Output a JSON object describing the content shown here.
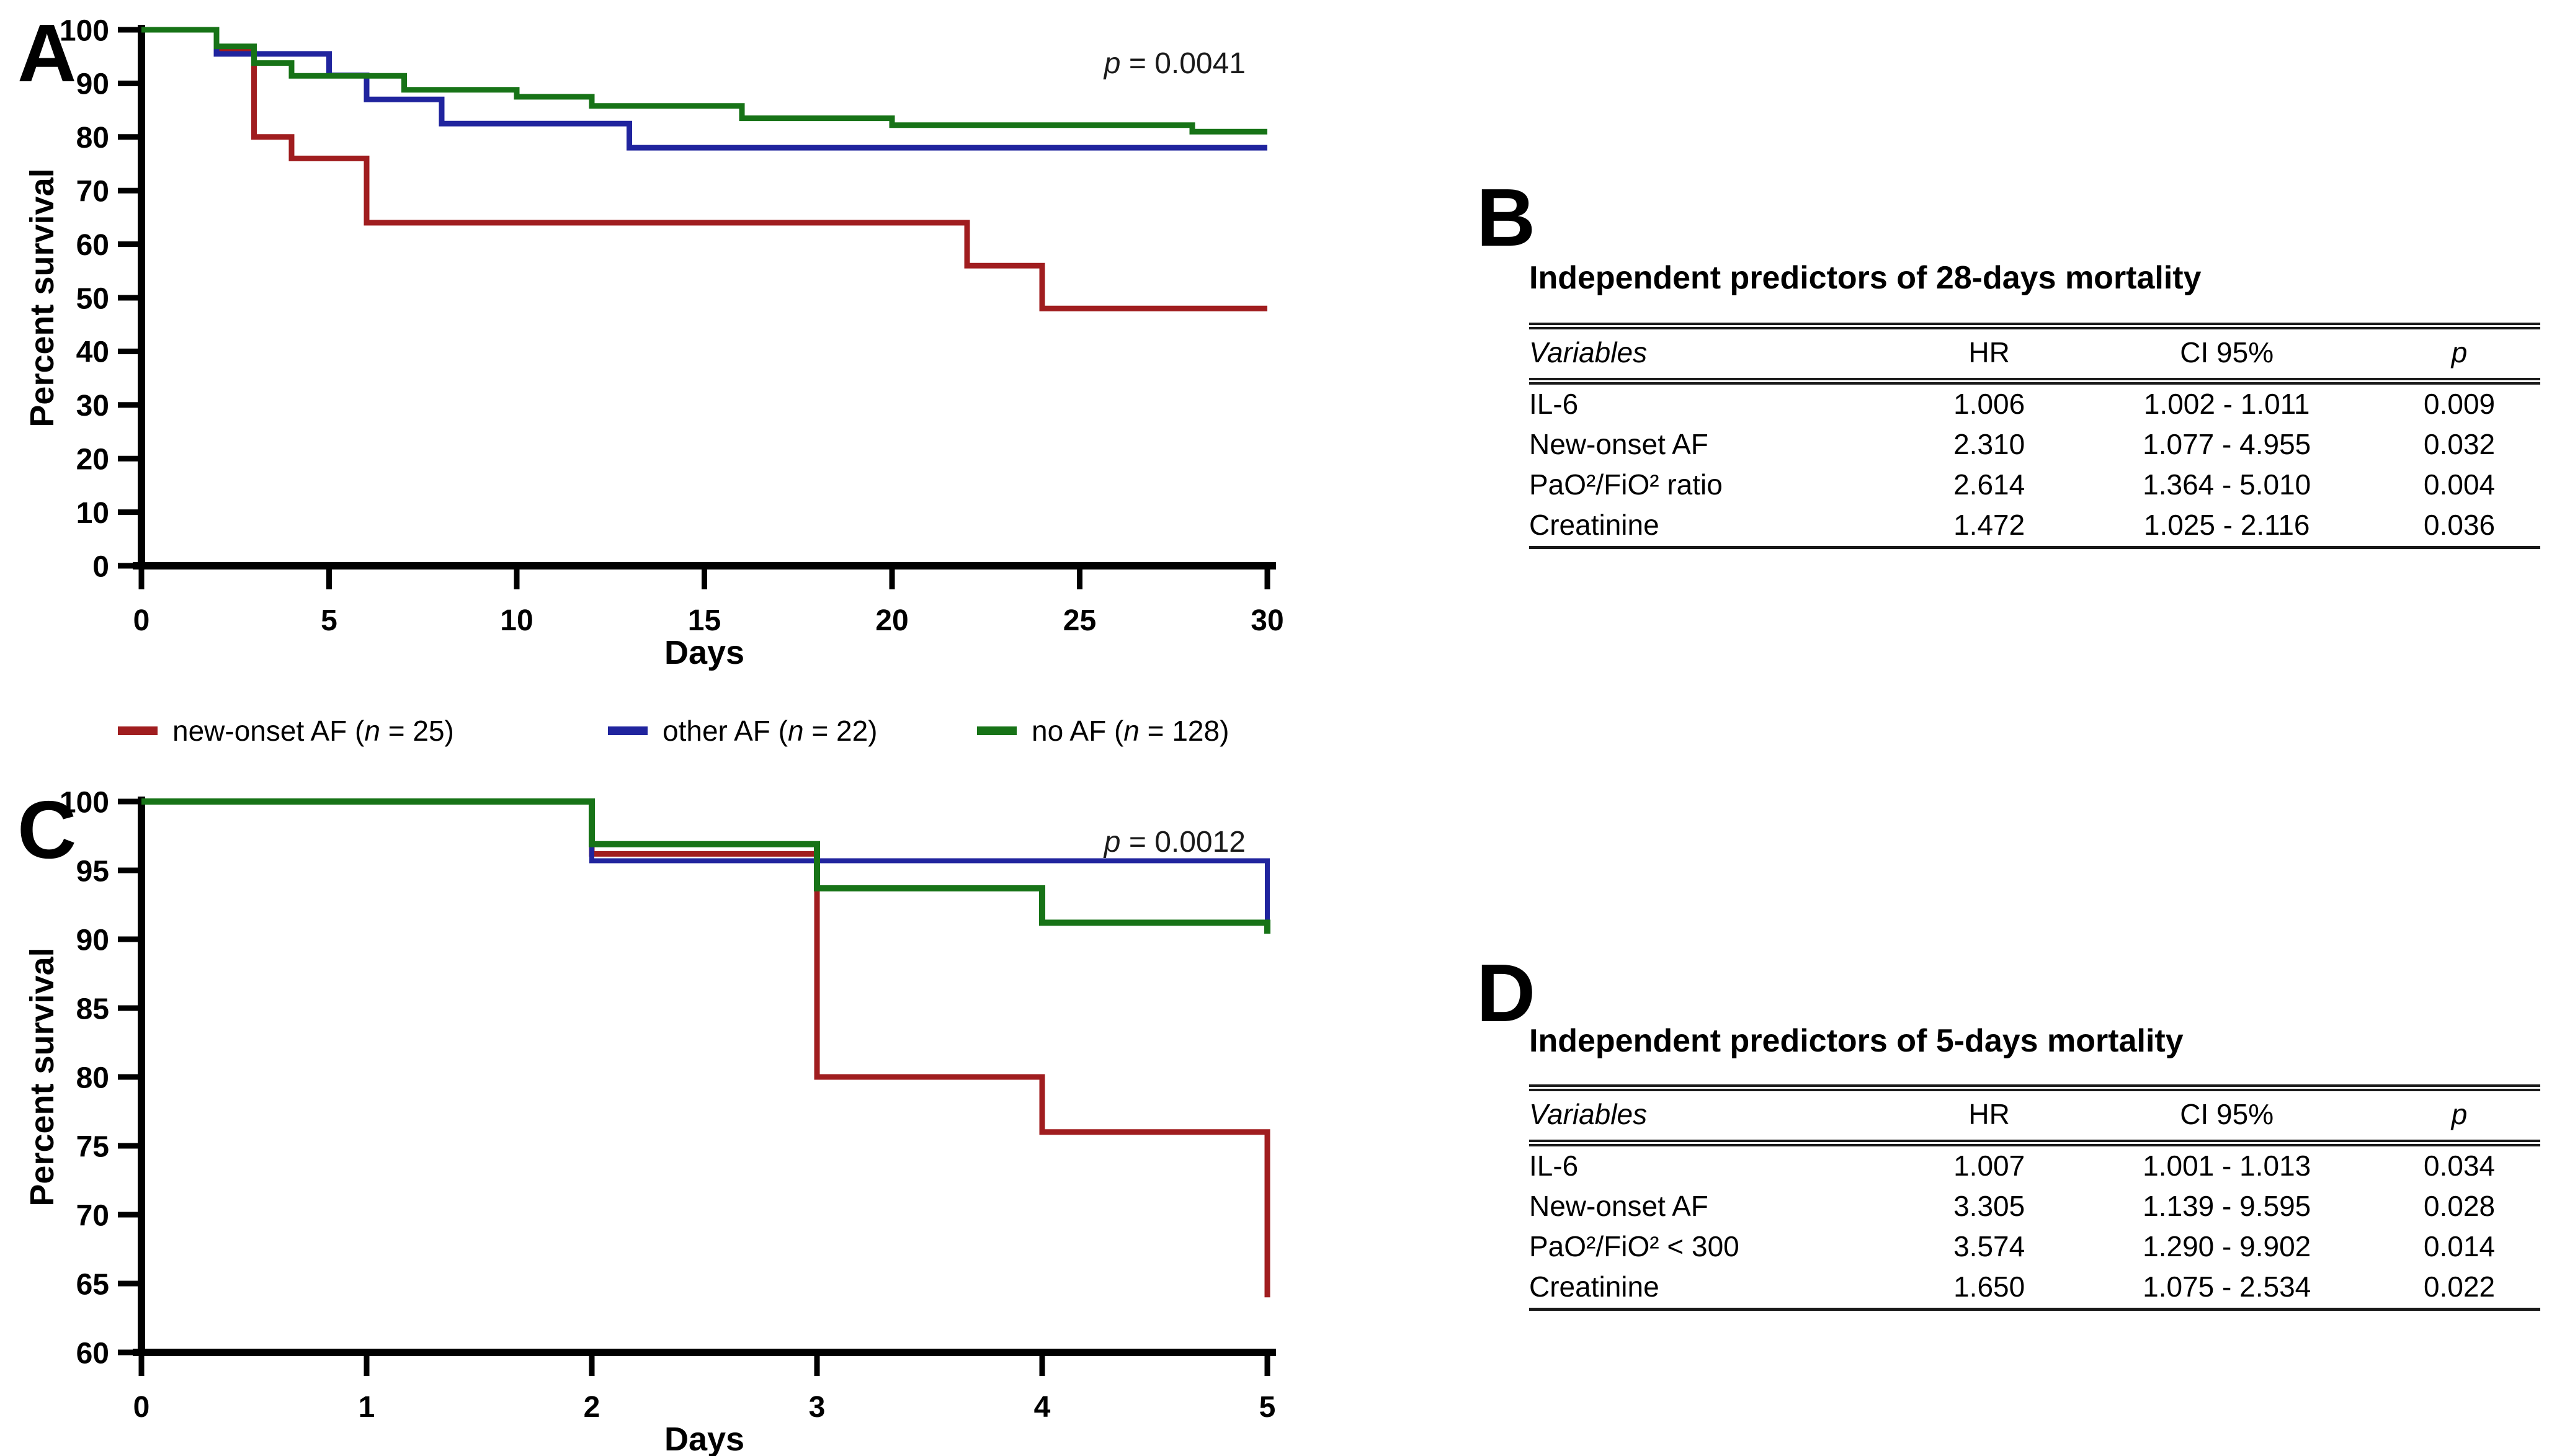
{
  "panel_letters": {
    "A": "A",
    "B": "B",
    "C": "C",
    "D": "D"
  },
  "legend": {
    "items": [
      {
        "label": "new-onset AF (n = 25)",
        "color": "#A01D1F"
      },
      {
        "label": "other AF (n = 22)",
        "color": "#20249E"
      },
      {
        "label": "no AF (n = 128)",
        "color": "#177317"
      }
    ]
  },
  "chart_data": [
    {
      "panel": "A",
      "type": "line",
      "subtype": "kaplan_meier_step",
      "title": "",
      "xlabel": "Days",
      "ylabel": "Percent survival",
      "xlim": [
        0,
        30
      ],
      "xticks": [
        0,
        5,
        10,
        15,
        20,
        25,
        30
      ],
      "ylim": [
        0,
        100
      ],
      "yticks": [
        0,
        10,
        20,
        30,
        40,
        50,
        60,
        70,
        80,
        90,
        100
      ],
      "grid": false,
      "legend_position": "below",
      "annotation": "p = 0.0041",
      "series": [
        {
          "name": "new-onset AF (n = 25)",
          "color": "#A01D1F",
          "stroke_width": 9,
          "points": [
            [
              0,
              100
            ],
            [
              2,
              96
            ],
            [
              3,
              80
            ],
            [
              4,
              76
            ],
            [
              6,
              64
            ],
            [
              22,
              56
            ],
            [
              24,
              48
            ],
            [
              30,
              48
            ]
          ]
        },
        {
          "name": "other AF (n = 22)",
          "color": "#20249E",
          "stroke_width": 9,
          "points": [
            [
              0,
              100
            ],
            [
              2,
              95.5
            ],
            [
              5,
              91.5
            ],
            [
              6,
              87
            ],
            [
              8,
              82.5
            ],
            [
              13,
              78
            ],
            [
              30,
              78
            ]
          ]
        },
        {
          "name": "no AF (n = 128)",
          "color": "#177317",
          "stroke_width": 9,
          "points": [
            [
              0,
              100
            ],
            [
              2,
              96.9
            ],
            [
              3,
              93.8
            ],
            [
              4,
              91.4
            ],
            [
              7,
              88.8
            ],
            [
              10,
              87.5
            ],
            [
              12,
              85.8
            ],
            [
              16,
              83.5
            ],
            [
              20,
              82.2
            ],
            [
              28,
              81
            ],
            [
              30,
              81
            ]
          ]
        }
      ]
    },
    {
      "panel": "C",
      "type": "line",
      "subtype": "kaplan_meier_step",
      "title": "",
      "xlabel": "Days",
      "ylabel": "Percent survival",
      "xlim": [
        0,
        5
      ],
      "xticks": [
        0,
        1,
        2,
        3,
        4,
        5
      ],
      "ylim": [
        60,
        100
      ],
      "yticks": [
        60,
        65,
        70,
        75,
        80,
        85,
        90,
        95,
        100
      ],
      "grid": false,
      "annotation": "p = 0.0012",
      "series": [
        {
          "name": "new-onset AF (n = 25)",
          "color": "#A01D1F",
          "stroke_width": 9,
          "points": [
            [
              0,
              100
            ],
            [
              2,
              96.2
            ],
            [
              3,
              80
            ],
            [
              4,
              76
            ],
            [
              5,
              76
            ],
            [
              5,
              64
            ]
          ]
        },
        {
          "name": "other AF (n = 22)",
          "color": "#20249E",
          "stroke_width": 8,
          "points": [
            [
              0,
              100
            ],
            [
              2,
              95.7
            ],
            [
              5,
              95.7
            ],
            [
              5,
              91.4
            ]
          ]
        },
        {
          "name": "no AF (n = 128)",
          "color": "#177317",
          "stroke_width": 10,
          "points": [
            [
              0,
              100
            ],
            [
              2,
              96.9
            ],
            [
              3,
              93.7
            ],
            [
              4,
              91.2
            ],
            [
              5,
              91.2
            ],
            [
              5,
              90.4
            ]
          ]
        }
      ]
    }
  ],
  "tables": {
    "B": {
      "title": "Independent predictors of 28-days mortality",
      "columns": [
        "Variables",
        "HR",
        "CI 95%",
        "p"
      ],
      "rows": [
        [
          "IL-6",
          "1.006",
          "1.002 - 1.011",
          "0.009"
        ],
        [
          "New-onset AF",
          "2.310",
          "1.077 - 4.955",
          "0.032"
        ],
        [
          "PaO²/FiO² ratio",
          "2.614",
          "1.364 - 5.010",
          "0.004"
        ],
        [
          "Creatinine",
          "1.472",
          "1.025 - 2.116",
          "0.036"
        ]
      ]
    },
    "D": {
      "title": "Independent predictors of 5-days mortality",
      "columns": [
        "Variables",
        "HR",
        "CI 95%",
        "p"
      ],
      "rows": [
        [
          "IL-6",
          "1.007",
          "1.001 - 1.013",
          "0.034"
        ],
        [
          "New-onset AF",
          "3.305",
          "1.139 - 9.595",
          "0.028"
        ],
        [
          "PaO²/FiO² < 300",
          "3.574",
          "1.290 - 9.902",
          "0.014"
        ],
        [
          "Creatinine",
          "1.650",
          "1.075 - 2.534",
          "0.022"
        ]
      ]
    }
  }
}
